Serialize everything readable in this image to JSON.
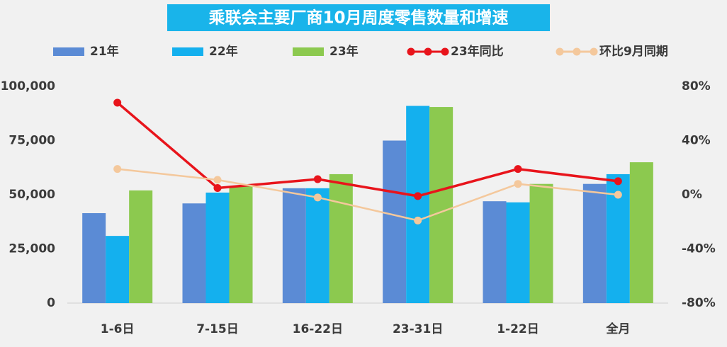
{
  "chart_data": {
    "type": "bar",
    "title": "乘联会主要厂商10月周度零售数量和增速",
    "categories": [
      "1-6日",
      "7-15日",
      "16-22日",
      "23-31日",
      "1-22日",
      "全月"
    ],
    "series": [
      {
        "name": "21年",
        "color": "#5b8bd5",
        "values": [
          41500,
          46000,
          53000,
          75000,
          47000,
          55000
        ]
      },
      {
        "name": "22年",
        "color": "#14b0ee",
        "values": [
          31000,
          51000,
          53000,
          91000,
          46500,
          59500
        ]
      },
      {
        "name": "23年",
        "color": "#8cc94f",
        "values": [
          52000,
          54000,
          59500,
          90500,
          55000,
          65000
        ]
      },
      {
        "name": "23年同比",
        "color": "#e8141b",
        "type": "line",
        "axis": "y2",
        "values": [
          68,
          5,
          11.5,
          -1,
          19,
          10
        ]
      },
      {
        "name": "环比9月同期",
        "color": "#f4c89c",
        "type": "line",
        "axis": "y2",
        "values": [
          19,
          11,
          -2,
          -19,
          8,
          0
        ]
      }
    ],
    "ylim": [
      0,
      100000
    ],
    "yticks": [
      0,
      {
        "value": 25000,
        "label": "25,000"
      },
      {
        "value": 50000,
        "label": "50,000"
      },
      {
        "value": 75000,
        "label": "75,000"
      },
      {
        "value": 100000,
        "label": "100,000"
      }
    ],
    "y2lim": [
      -80,
      80
    ],
    "y2ticks": [
      {
        "value": -80,
        "label": "-80%"
      },
      {
        "value": -40,
        "label": "-40%"
      },
      {
        "value": 0,
        "label": "0%"
      },
      {
        "value": 40,
        "label": "40%"
      },
      {
        "value": 80,
        "label": "80%"
      }
    ],
    "grid": false
  }
}
